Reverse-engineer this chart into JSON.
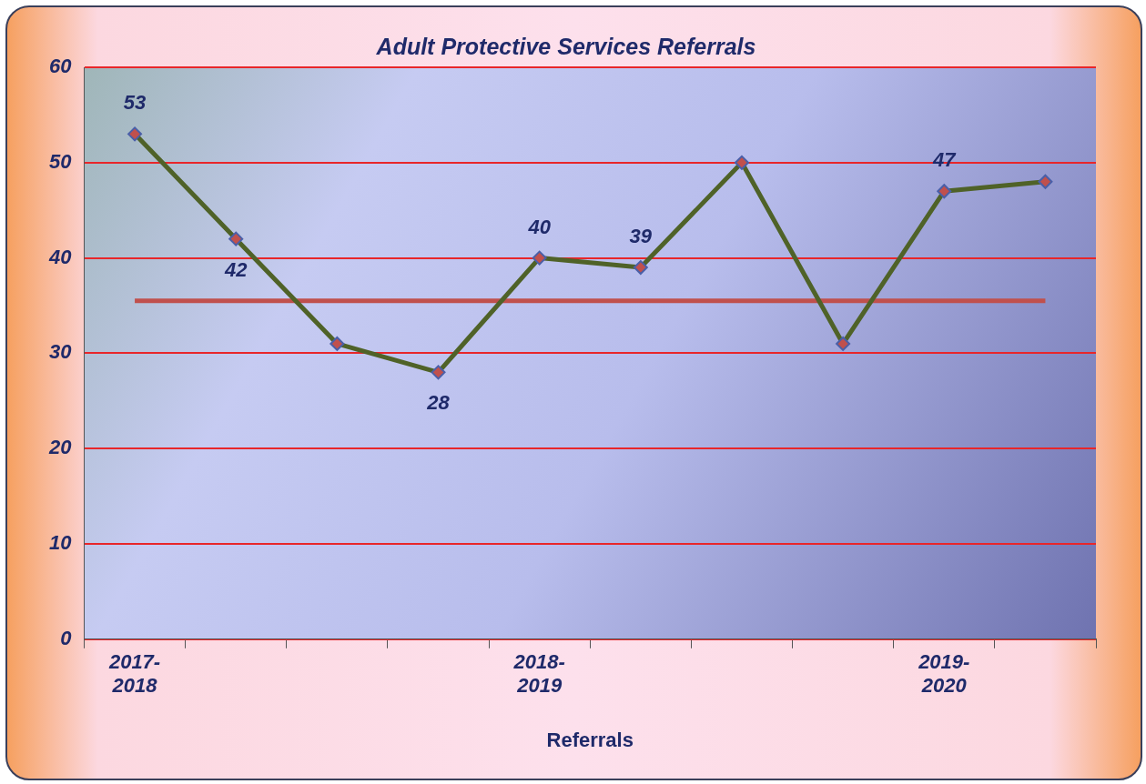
{
  "chart_data": {
    "type": "line",
    "title": "Adult Protective Services Referrals",
    "xlabel": "Referrals",
    "categories": [
      "2017-2018",
      null,
      null,
      null,
      "2018-2019",
      null,
      null,
      null,
      "2019-2020",
      null
    ],
    "series": [
      {
        "color": "#4f6228",
        "values": [
          53,
          42,
          31,
          28,
          40,
          39,
          50,
          31,
          47,
          48
        ],
        "value_labels": [
          "53",
          "42",
          null,
          "28",
          "40",
          "39",
          null,
          null,
          "47",
          null
        ]
      }
    ],
    "ylim": [
      0,
      60
    ],
    "yticks": [
      0,
      10,
      20,
      30,
      40,
      50,
      60
    ],
    "grid": "y",
    "legend": false,
    "marker": "diamond",
    "line_style": "solid",
    "ref_lines": [
      {
        "axis": "y",
        "value": 35.5,
        "color": "#c0504d"
      }
    ]
  }
}
